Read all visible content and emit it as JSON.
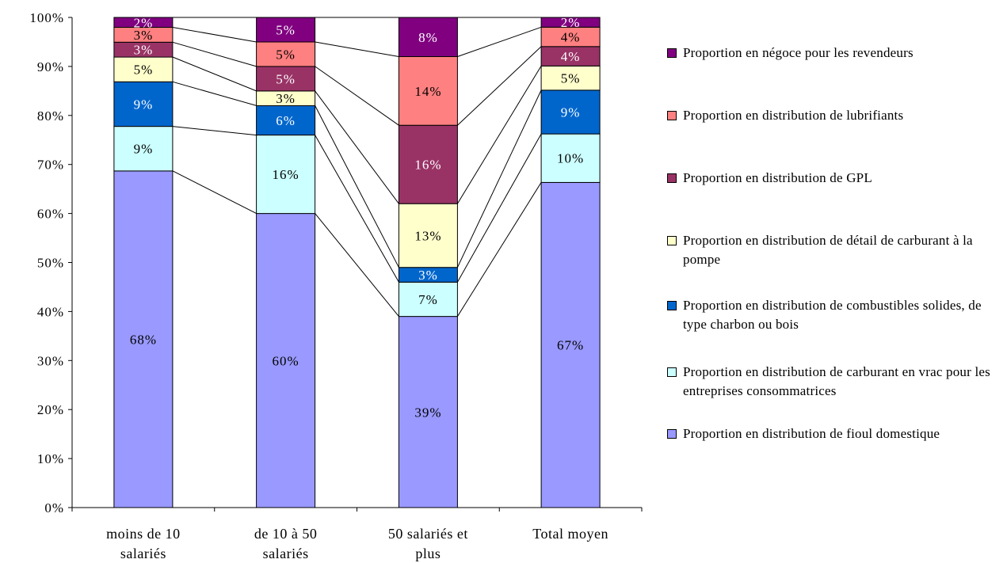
{
  "chart_data": {
    "type": "bar",
    "stacked": true,
    "percent_scale": true,
    "categories": [
      "moins de 10 salariés",
      "de 10 à 50 salariés",
      "50 salariés et plus",
      "Total moyen"
    ],
    "series": [
      {
        "name": "Proportion en distribution de fioul domestique",
        "values": [
          68,
          60,
          39,
          67
        ],
        "labels": [
          "68%",
          "60%",
          "39%",
          "67%"
        ],
        "color": "#9999ff"
      },
      {
        "name": "Proportion en distribution de carburant en vrac pour les entreprises consommatrices",
        "values": [
          9,
          16,
          7,
          10
        ],
        "labels": [
          "9%",
          "16%",
          "7%",
          "10%"
        ],
        "color": "#ccffff"
      },
      {
        "name": "Proportion en distribution de combustibles solides, de type charbon ou bois",
        "values": [
          9,
          6,
          3,
          9
        ],
        "labels": [
          "9%",
          "6%",
          "3%",
          "9%"
        ],
        "color": "#0066cc"
      },
      {
        "name": "Proportion en distribution de détail de carburant à la pompe",
        "values": [
          5,
          3,
          13,
          5
        ],
        "labels": [
          "5%",
          "3%",
          "13%",
          "5%"
        ],
        "color": "#ffffcc"
      },
      {
        "name": "Proportion en distribution de GPL",
        "values": [
          3,
          5,
          16,
          4
        ],
        "labels": [
          "3%",
          "5%",
          "16%",
          "4%"
        ],
        "color": "#993366"
      },
      {
        "name": "Proportion en distribution de lubrifiants",
        "values": [
          3,
          5,
          14,
          4
        ],
        "labels": [
          "3%",
          "5%",
          "14%",
          "4%"
        ],
        "color": "#ff8080"
      },
      {
        "name": "Proportion en négoce pour les revendeurs",
        "values": [
          2,
          5,
          8,
          2
        ],
        "labels": [
          "2%",
          "5%",
          "8%",
          "2%"
        ],
        "color": "#800080"
      }
    ],
    "y_ticks": [
      "0%",
      "10%",
      "20%",
      "30%",
      "40%",
      "50%",
      "60%",
      "70%",
      "80%",
      "90%",
      "100%"
    ],
    "ylim": [
      0,
      100
    ],
    "series_lines": true,
    "grid": false,
    "legend_position": "right",
    "title": "",
    "xlabel": "",
    "ylabel": ""
  }
}
